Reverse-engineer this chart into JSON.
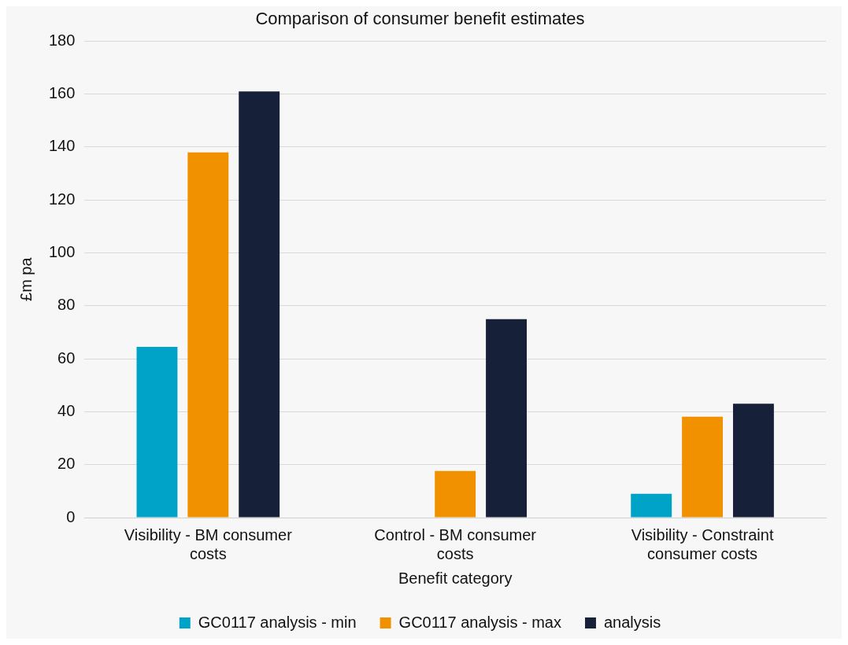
{
  "chart_data": {
    "type": "bar",
    "title": "Comparison of consumer benefit estimates",
    "xlabel": "Benefit category",
    "ylabel": "£m pa",
    "categories": [
      "Visibility - BM consumer costs",
      "Control - BM consumer costs",
      "Visibility - Constraint consumer costs"
    ],
    "series": [
      {
        "name": "GC0117 analysis - min",
        "color": "#00a3c8",
        "values": [
          64.5,
          null,
          9
        ]
      },
      {
        "name": "GC0117 analysis - max",
        "color": "#f29100",
        "values": [
          138,
          17.6,
          38.1
        ]
      },
      {
        "name": "analysis",
        "color": "#162038",
        "values": [
          161,
          75,
          43
        ]
      }
    ],
    "ylim": [
      0,
      180
    ],
    "yticks": [
      0,
      20,
      40,
      60,
      80,
      100,
      120,
      140,
      160,
      180
    ],
    "grid": "y",
    "legend": "bottom"
  }
}
